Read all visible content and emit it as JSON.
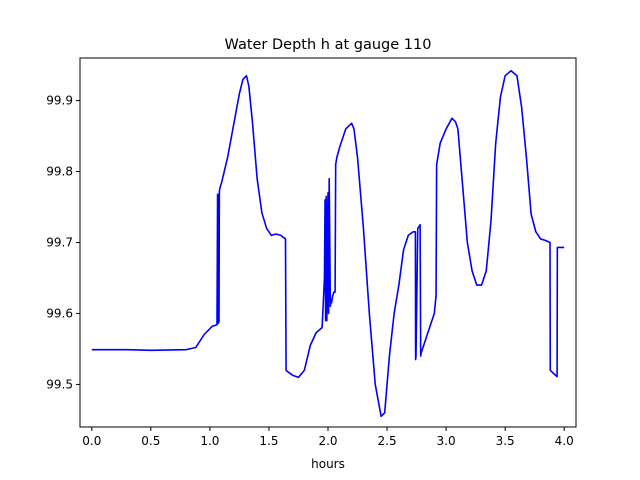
{
  "chart_data": {
    "type": "line",
    "title": "Water Depth h at gauge 110",
    "xlabel": "hours",
    "ylabel": "",
    "xlim": [
      -0.1,
      4.1
    ],
    "ylim": [
      99.44,
      99.96
    ],
    "xticks": [
      0.0,
      0.5,
      1.0,
      1.5,
      2.0,
      2.5,
      3.0,
      3.5,
      4.0
    ],
    "xtick_labels": [
      "0.0",
      "0.5",
      "1.0",
      "1.5",
      "2.0",
      "2.5",
      "3.0",
      "3.5",
      "4.0"
    ],
    "yticks": [
      99.5,
      99.6,
      99.7,
      99.8,
      99.9
    ],
    "ytick_labels": [
      "99.5",
      "99.6",
      "99.7",
      "99.8",
      "99.9"
    ],
    "grid": false,
    "color": "#0000ff",
    "series": [
      {
        "name": "",
        "x": [
          0.0,
          0.3,
          0.5,
          0.8,
          0.88,
          0.95,
          1.02,
          1.06,
          1.065,
          1.07,
          1.072,
          1.077,
          1.08,
          1.082,
          1.1,
          1.15,
          1.2,
          1.25,
          1.28,
          1.31,
          1.33,
          1.36,
          1.4,
          1.44,
          1.48,
          1.52,
          1.56,
          1.6,
          1.64,
          1.645,
          1.65,
          1.7,
          1.75,
          1.8,
          1.85,
          1.9,
          1.95,
          1.97,
          1.975,
          1.98,
          1.985,
          1.99,
          2.0,
          2.005,
          2.01,
          2.02,
          2.025,
          2.03,
          2.035,
          2.04,
          2.05,
          2.06,
          2.065,
          2.07,
          2.075,
          2.1,
          2.15,
          2.2,
          2.22,
          2.25,
          2.3,
          2.35,
          2.4,
          2.45,
          2.48,
          2.52,
          2.56,
          2.6,
          2.64,
          2.68,
          2.72,
          2.74,
          2.742,
          2.745,
          2.76,
          2.77,
          2.78,
          2.785,
          2.79,
          2.8,
          2.84,
          2.9,
          2.915,
          2.92,
          2.95,
          3.0,
          3.05,
          3.08,
          3.1,
          3.14,
          3.18,
          3.22,
          3.26,
          3.3,
          3.34,
          3.38,
          3.42,
          3.46,
          3.5,
          3.55,
          3.6,
          3.64,
          3.68,
          3.72,
          3.76,
          3.8,
          3.84,
          3.88,
          3.882,
          3.9,
          3.94,
          3.942,
          3.945,
          4.0
        ],
        "y": [
          99.549,
          99.549,
          99.548,
          99.549,
          99.552,
          99.57,
          99.582,
          99.584,
          99.768,
          99.586,
          99.768,
          99.588,
          99.768,
          99.775,
          99.785,
          99.82,
          99.865,
          99.91,
          99.93,
          99.935,
          99.92,
          99.87,
          99.79,
          99.742,
          99.72,
          99.71,
          99.712,
          99.71,
          99.705,
          99.52,
          99.519,
          99.513,
          99.51,
          99.52,
          99.555,
          99.573,
          99.58,
          99.65,
          99.76,
          99.59,
          99.765,
          99.59,
          99.77,
          99.6,
          99.79,
          99.61,
          99.62,
          99.615,
          99.62,
          99.625,
          99.63,
          99.63,
          99.81,
          99.815,
          99.82,
          99.835,
          99.86,
          99.868,
          99.86,
          99.82,
          99.72,
          99.6,
          99.5,
          99.455,
          99.46,
          99.54,
          99.6,
          99.64,
          99.69,
          99.71,
          99.715,
          99.715,
          99.535,
          99.54,
          99.72,
          99.722,
          99.725,
          99.54,
          99.545,
          99.55,
          99.57,
          99.6,
          99.625,
          99.81,
          99.84,
          99.86,
          99.875,
          99.87,
          99.86,
          99.78,
          99.7,
          99.66,
          99.64,
          99.64,
          99.66,
          99.73,
          99.84,
          99.905,
          99.935,
          99.942,
          99.935,
          99.89,
          99.82,
          99.74,
          99.715,
          99.705,
          99.703,
          99.7,
          99.52,
          99.517,
          99.511,
          99.693,
          99.693,
          99.693
        ]
      }
    ]
  }
}
